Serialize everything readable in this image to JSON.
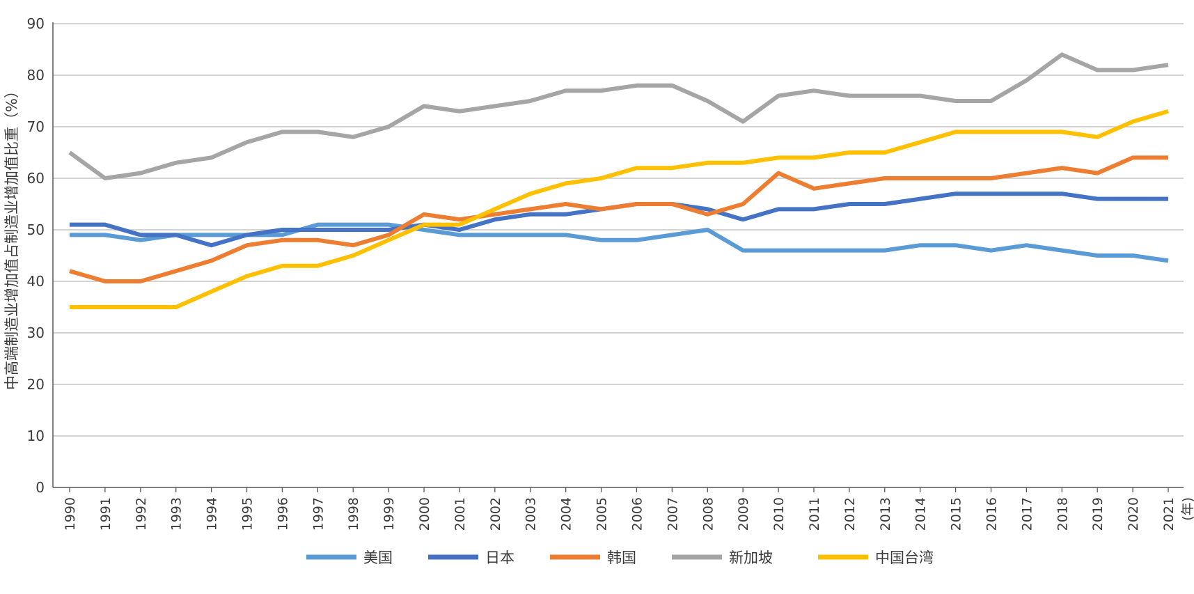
{
  "chart_data": {
    "type": "line",
    "title": "",
    "ylabel": "中高端制造业增加值占制造业增加值比重（%）",
    "x_unit": "(年)",
    "ylim": [
      0,
      90
    ],
    "yticks": [
      0,
      10,
      20,
      30,
      40,
      50,
      60,
      70,
      80,
      90
    ],
    "grid": true,
    "legend_position": "bottom",
    "categories": [
      "1990",
      "1991",
      "1992",
      "1993",
      "1994",
      "1995",
      "1996",
      "1997",
      "1998",
      "1999",
      "2000",
      "2001",
      "2002",
      "2003",
      "2004",
      "2005",
      "2006",
      "2007",
      "2008",
      "2009",
      "2010",
      "2011",
      "2012",
      "2013",
      "2014",
      "2015",
      "2016",
      "2017",
      "2018",
      "2019",
      "2020",
      "2021"
    ],
    "series": [
      {
        "name": "美国",
        "color": "#5b9bd5",
        "values": [
          49,
          49,
          48,
          49,
          49,
          49,
          49,
          51,
          51,
          51,
          50,
          49,
          49,
          49,
          49,
          48,
          48,
          49,
          50,
          46,
          46,
          46,
          46,
          46,
          47,
          47,
          46,
          47,
          46,
          45,
          45,
          44
        ]
      },
      {
        "name": "日本",
        "color": "#4472c4",
        "values": [
          51,
          51,
          49,
          49,
          47,
          49,
          50,
          50,
          50,
          50,
          51,
          50,
          52,
          53,
          53,
          54,
          55,
          55,
          54,
          52,
          54,
          54,
          55,
          55,
          56,
          57,
          57,
          57,
          57,
          56,
          56,
          56
        ]
      },
      {
        "name": "韩国",
        "color": "#ed7d31",
        "values": [
          42,
          40,
          40,
          42,
          44,
          47,
          48,
          48,
          47,
          49,
          53,
          52,
          53,
          54,
          55,
          54,
          55,
          55,
          53,
          55,
          61,
          58,
          59,
          60,
          60,
          60,
          60,
          61,
          62,
          61,
          64,
          64
        ]
      },
      {
        "name": "新加坡",
        "color": "#a5a5a5",
        "values": [
          65,
          60,
          61,
          63,
          64,
          67,
          69,
          69,
          68,
          70,
          74,
          73,
          74,
          75,
          77,
          77,
          78,
          78,
          75,
          71,
          76,
          77,
          76,
          76,
          76,
          75,
          75,
          79,
          84,
          81,
          81,
          82
        ]
      },
      {
        "name": "中国台湾",
        "color": "#ffc000",
        "values": [
          35,
          35,
          35,
          35,
          38,
          41,
          43,
          43,
          45,
          48,
          51,
          51,
          54,
          57,
          59,
          60,
          62,
          62,
          63,
          63,
          64,
          64,
          65,
          65,
          67,
          69,
          69,
          69,
          69,
          68,
          71,
          73
        ]
      }
    ]
  }
}
